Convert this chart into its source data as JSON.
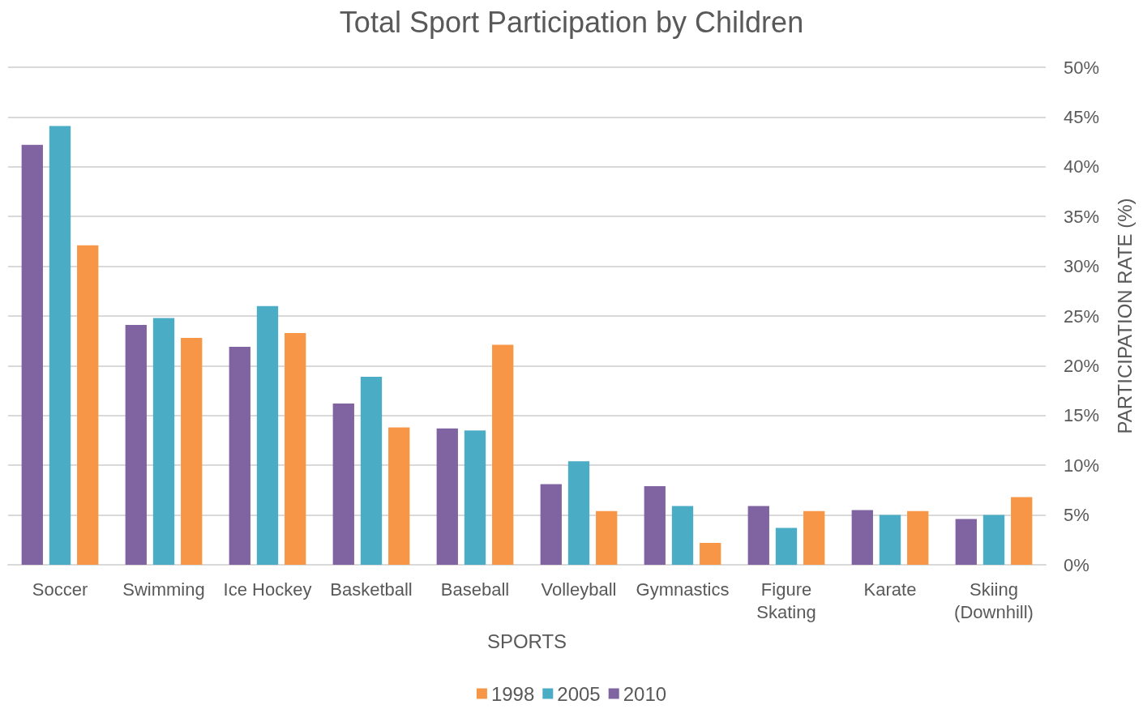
{
  "chart_data": {
    "type": "bar",
    "title": "Total Sport Participation by Children",
    "xlabel": "SPORTS",
    "ylabel": "PARTICIPATION RATE (%)",
    "categories": [
      "Soccer",
      "Swimming",
      "Ice Hockey",
      "Basketball",
      "Baseball",
      "Volleyball",
      "Gymnastics",
      "Figure\nSkating",
      "Karate",
      "Skiing\n(Downhill)"
    ],
    "series": [
      {
        "name": "1998",
        "color": "#f79646",
        "values": [
          32.1,
          22.8,
          23.3,
          13.8,
          22.1,
          5.4,
          2.2,
          5.4,
          5.4,
          6.8
        ]
      },
      {
        "name": "2005",
        "color": "#4bacc6",
        "values": [
          44.1,
          24.8,
          26.0,
          18.9,
          13.5,
          10.4,
          5.9,
          3.7,
          5.0,
          5.0
        ]
      },
      {
        "name": "2010",
        "color": "#8064a2",
        "values": [
          42.2,
          24.1,
          21.9,
          16.2,
          13.7,
          8.1,
          7.9,
          5.9,
          5.5,
          4.6
        ]
      }
    ],
    "ylim": [
      0,
      50
    ],
    "yticks": [
      {
        "value": 0,
        "label": "0%"
      },
      {
        "value": 5,
        "label": "5%"
      },
      {
        "value": 10,
        "label": "10%"
      },
      {
        "value": 15,
        "label": "15%"
      },
      {
        "value": 20,
        "label": "20%"
      },
      {
        "value": 25,
        "label": "25%"
      },
      {
        "value": 30,
        "label": "30%"
      },
      {
        "value": 35,
        "label": "35%"
      },
      {
        "value": 40,
        "label": "40%"
      },
      {
        "value": 45,
        "label": "45%"
      },
      {
        "value": 50,
        "label": "50%"
      }
    ],
    "grid": "y",
    "legend": "bottom"
  }
}
